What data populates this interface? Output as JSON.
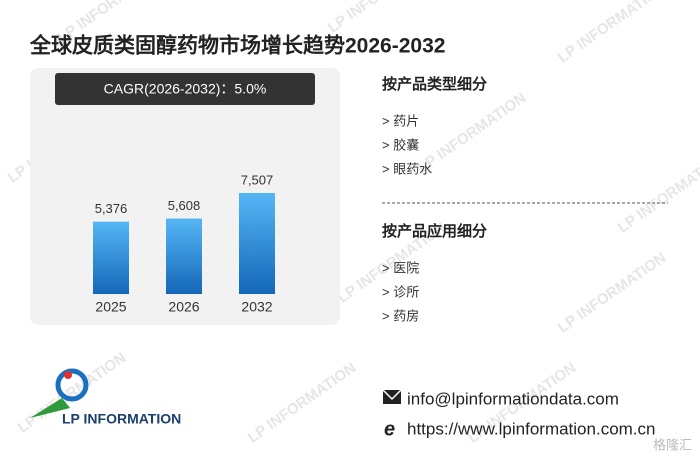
{
  "chart_data": {
    "type": "bar",
    "title": "全球皮质类固醇药物市场增长趋势2026-2032",
    "subtitle": "CAGR(2026-2032)：5.0%",
    "categories": [
      "2025",
      "2026",
      "2032"
    ],
    "values": [
      5376,
      5608,
      7507
    ],
    "value_labels": [
      "5,376",
      "5,608",
      "7,507"
    ],
    "color": "#2a8ee0"
  },
  "segments": [
    {
      "title": "按产品类型细分",
      "items": [
        "> 药片",
        "> 胶囊",
        "> 眼药水"
      ]
    },
    {
      "title": "按产品应用细分",
      "items": [
        "> 医院",
        "> 诊所",
        "> 药房"
      ]
    }
  ],
  "logo": "LP INFORMATION",
  "watermark": "LP INFORMATION",
  "contact": {
    "email": "info@lpinformationdata.com",
    "website": "https://www.lpinformation.com.cn"
  },
  "corner_mark": "格隆汇"
}
